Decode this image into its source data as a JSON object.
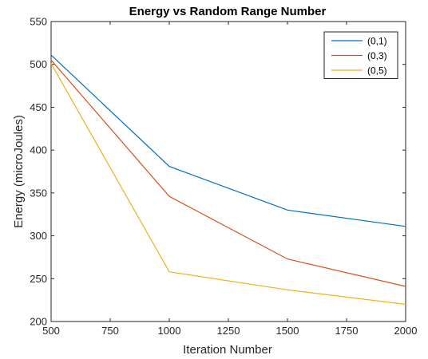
{
  "chart_data": {
    "type": "line",
    "title": "Energy vs Random Range Number",
    "xlabel": "Iteration Number",
    "ylabel": "Energy (microJoules)",
    "x": [
      500,
      1000,
      1500,
      2000
    ],
    "xlim": [
      500,
      2000
    ],
    "ylim": [
      200,
      550
    ],
    "xticks": [
      500,
      750,
      1000,
      1250,
      1500,
      1750,
      2000
    ],
    "yticks": [
      200,
      250,
      300,
      350,
      400,
      450,
      500,
      550
    ],
    "grid": false,
    "legend_position": "top-right",
    "series": [
      {
        "name": "(0,1)",
        "color": "#0072BD",
        "values": [
          511,
          381,
          330,
          311
        ]
      },
      {
        "name": "(0,3)",
        "color": "#D95319",
        "values": [
          505,
          346,
          273,
          241
        ]
      },
      {
        "name": "(0,5)",
        "color": "#EDB120",
        "values": [
          501,
          258,
          237,
          220
        ]
      }
    ]
  }
}
